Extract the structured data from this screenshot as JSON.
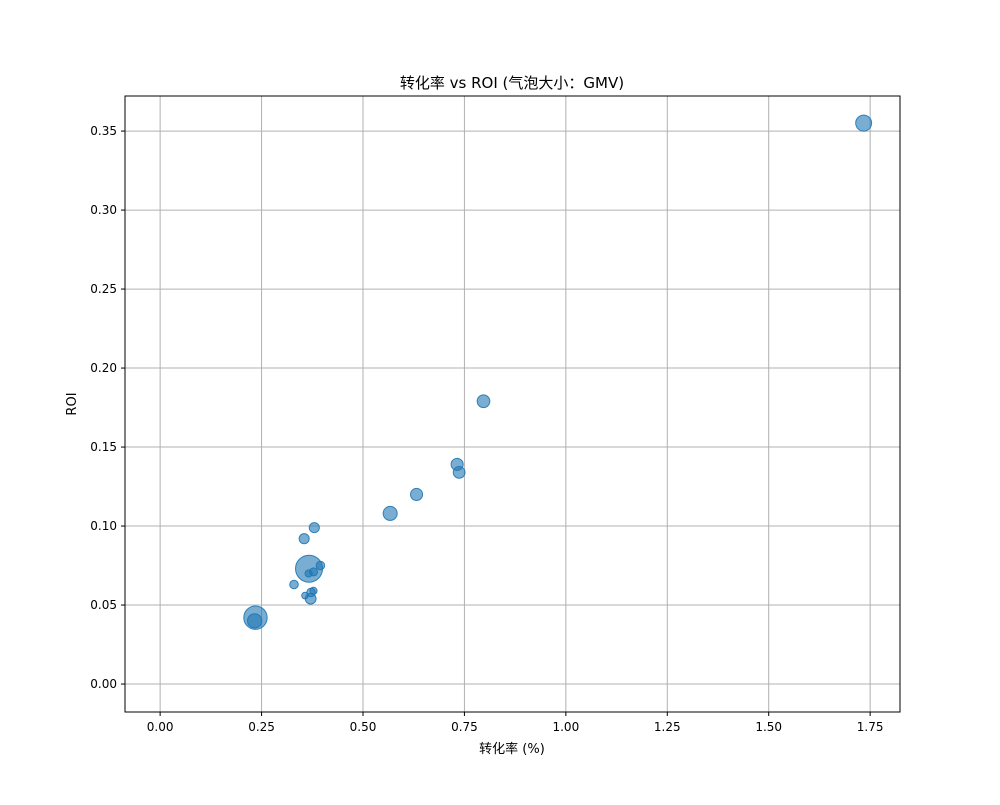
{
  "chart_data": {
    "type": "scatter",
    "title": "转化率 vs ROI (气泡大小：GMV)",
    "xlabel": "转化率 (%)",
    "ylabel": "ROI",
    "xlim": [
      -0.0866,
      1.8236
    ],
    "ylim": [
      -0.0177,
      0.3722
    ],
    "x_ticks": [
      0.0,
      0.25,
      0.5,
      0.75,
      1.0,
      1.25,
      1.5,
      1.75
    ],
    "x_tick_labels": [
      "0.00",
      "0.25",
      "0.50",
      "0.75",
      "1.00",
      "1.25",
      "1.50",
      "1.75"
    ],
    "y_ticks": [
      0.0,
      0.05,
      0.1,
      0.15,
      0.2,
      0.25,
      0.3,
      0.35
    ],
    "y_tick_labels": [
      "0.00",
      "0.05",
      "0.10",
      "0.15",
      "0.20",
      "0.25",
      "0.30",
      "0.35"
    ],
    "grid": true,
    "legend": "none",
    "marker_color": "#1f77b4",
    "marker_alpha": 0.6,
    "size_encoding": "GMV (relative bubble size)",
    "points": [
      {
        "x": 1.734,
        "y": 0.355,
        "size": 0.35
      },
      {
        "x": 0.797,
        "y": 0.179,
        "size": 0.22
      },
      {
        "x": 0.732,
        "y": 0.139,
        "size": 0.2
      },
      {
        "x": 0.737,
        "y": 0.134,
        "size": 0.19
      },
      {
        "x": 0.632,
        "y": 0.12,
        "size": 0.2
      },
      {
        "x": 0.567,
        "y": 0.108,
        "size": 0.27
      },
      {
        "x": 0.38,
        "y": 0.099,
        "size": 0.14
      },
      {
        "x": 0.355,
        "y": 0.092,
        "size": 0.14
      },
      {
        "x": 0.395,
        "y": 0.075,
        "size": 0.1
      },
      {
        "x": 0.367,
        "y": 0.073,
        "size": 1.0
      },
      {
        "x": 0.378,
        "y": 0.071,
        "size": 0.09
      },
      {
        "x": 0.366,
        "y": 0.07,
        "size": 0.07
      },
      {
        "x": 0.33,
        "y": 0.063,
        "size": 0.1
      },
      {
        "x": 0.378,
        "y": 0.059,
        "size": 0.07
      },
      {
        "x": 0.372,
        "y": 0.058,
        "size": 0.1
      },
      {
        "x": 0.357,
        "y": 0.056,
        "size": 0.06
      },
      {
        "x": 0.371,
        "y": 0.054,
        "size": 0.16
      },
      {
        "x": 0.235,
        "y": 0.042,
        "size": 0.75
      },
      {
        "x": 0.233,
        "y": 0.04,
        "size": 0.28
      }
    ]
  }
}
